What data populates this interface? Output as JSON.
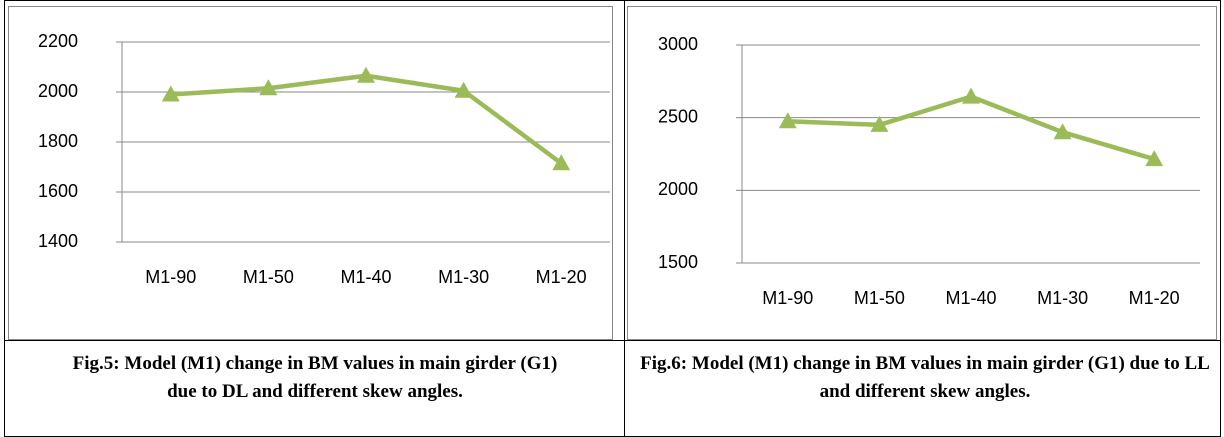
{
  "chart_data": [
    {
      "type": "line",
      "caption": "Fig.5: Model (M1) change in BM values in main girder (G1) due to DL and different skew angles.",
      "categories": [
        "M1-90",
        "M1-50",
        "M1-40",
        "M1-30",
        "M1-20"
      ],
      "values": [
        1990,
        2015,
        2065,
        2005,
        1715
      ],
      "color": "#9bbb59",
      "ylim": [
        1400,
        2200
      ],
      "yticks": [
        1400,
        1600,
        1800,
        2000,
        2200
      ],
      "grid": true
    },
    {
      "type": "line",
      "caption": "Fig.6: Model (M1) change in BM values in main girder (G1) due to LL and different skew angles.",
      "categories": [
        "M1-90",
        "M1-50",
        "M1-40",
        "M1-30",
        "M1-20"
      ],
      "values": [
        2475,
        2450,
        2645,
        2400,
        2215
      ],
      "color": "#9bbb59",
      "ylim": [
        1500,
        3000
      ],
      "yticks": [
        1500,
        2000,
        2500,
        3000
      ],
      "grid": true
    }
  ]
}
